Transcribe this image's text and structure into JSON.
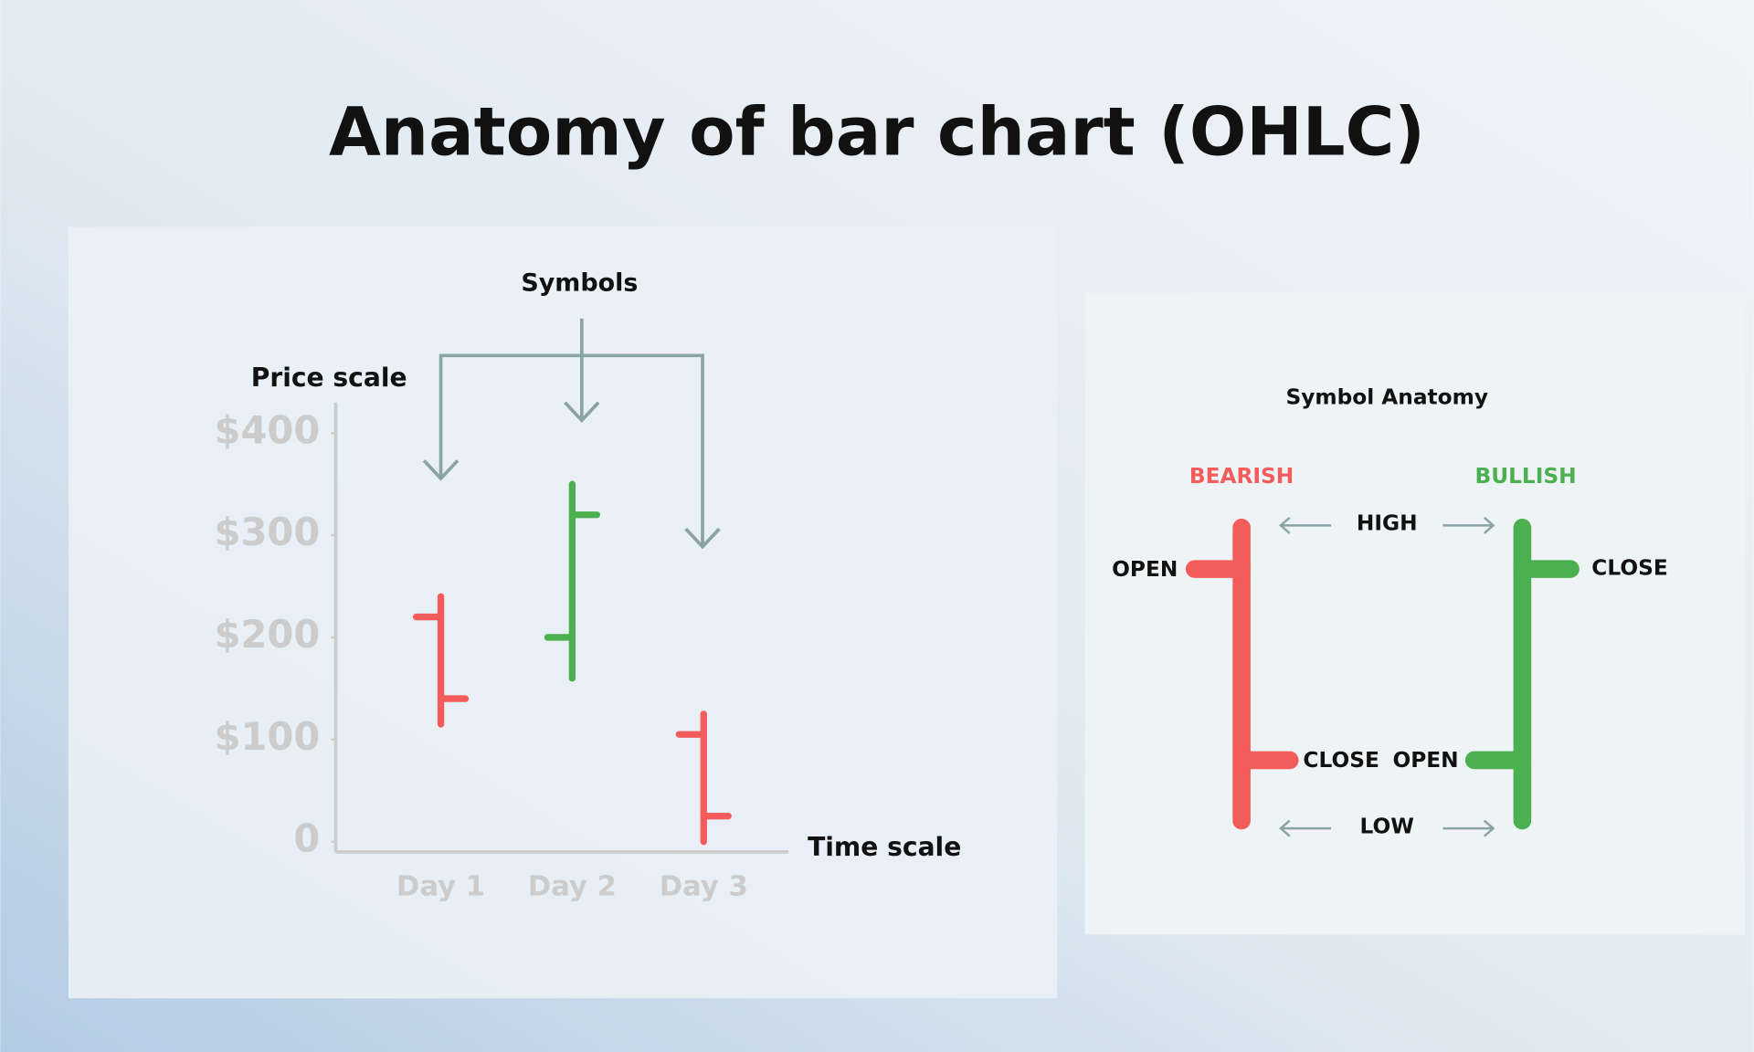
{
  "title": "Anatomy of bar chart (OHLC)",
  "chart_data": {
    "type": "ohlc",
    "annotation": "Symbols",
    "y_label": "Price scale",
    "x_label": "Time scale",
    "categories": [
      "Day 1",
      "Day 2",
      "Day 3"
    ],
    "open": [
      220,
      200,
      105
    ],
    "high": [
      240,
      350,
      125
    ],
    "low": [
      115,
      160,
      0
    ],
    "close": [
      140,
      320,
      25
    ],
    "up_color": "#4caf50",
    "down_color": "#f45b5b",
    "ylim": [
      -10,
      430
    ],
    "yticks": [
      0,
      {
        "value": 100,
        "label": "$100"
      },
      {
        "value": 200,
        "label": "$200"
      },
      {
        "value": 300,
        "label": "$300"
      },
      {
        "value": 400,
        "label": "$400"
      }
    ]
  },
  "anatomy": {
    "title": "Symbol  Anatomy",
    "bearish": {
      "label": "BEARISH",
      "open": "OPEN",
      "close": "CLOSE"
    },
    "bullish": {
      "label": "BULLISH",
      "open": "OPEN",
      "close": "CLOSE"
    },
    "high": "HIGH",
    "low": "LOW"
  }
}
